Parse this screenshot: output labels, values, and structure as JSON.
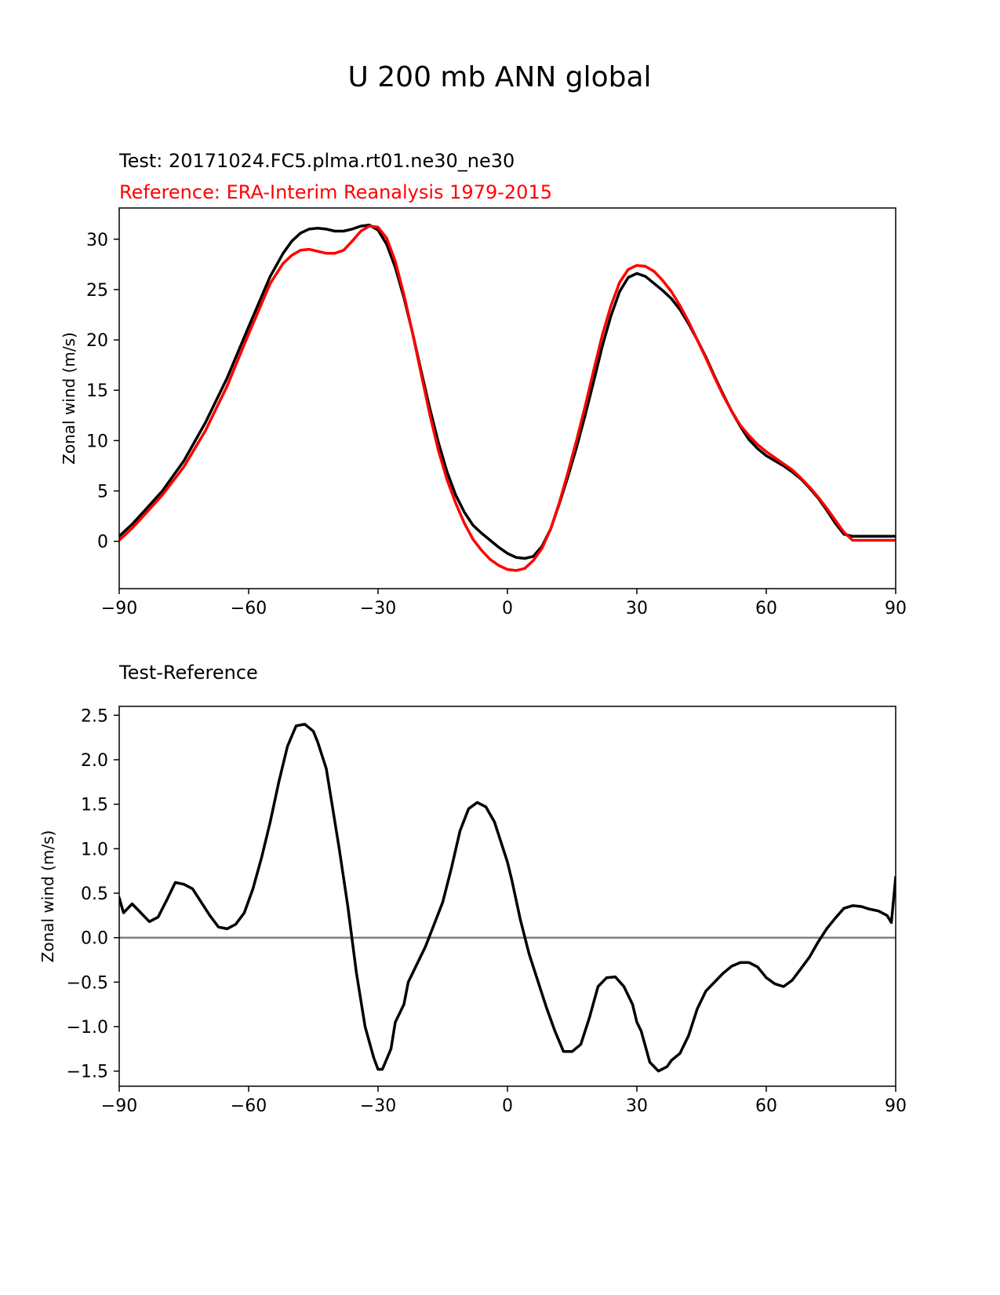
{
  "figure": {
    "title": "U 200 mb ANN global"
  },
  "colors": {
    "test": "#000000",
    "reference": "#ff0000",
    "zero_line": "#808080",
    "axes": "#000000"
  },
  "chart_data": [
    {
      "type": "line",
      "title_test": "Test: 20171024.FC5.plma.rt01.ne30_ne30",
      "title_reference": "Reference: ERA-Interim Reanalysis 1979-2015",
      "xlabel": "",
      "ylabel": "Zonal wind (m/s)",
      "xlim": [
        -90,
        90
      ],
      "ylim": [
        -4.7,
        33.1
      ],
      "xticks": [
        -90,
        -60,
        -30,
        0,
        30,
        60,
        90
      ],
      "xtick_labels": [
        "−90",
        "−60",
        "−30",
        "0",
        "30",
        "60",
        "90"
      ],
      "yticks": [
        0,
        5,
        10,
        15,
        20,
        25,
        30
      ],
      "ytick_labels": [
        "0",
        "5",
        "10",
        "15",
        "20",
        "25",
        "30"
      ],
      "series": [
        {
          "name": "Test",
          "color": "#000000",
          "x": [
            -90,
            -87,
            -84,
            -80,
            -75,
            -70,
            -65,
            -60,
            -55,
            -52,
            -50,
            -48,
            -46,
            -44,
            -42,
            -40,
            -38,
            -36,
            -34,
            -32,
            -30,
            -28,
            -26,
            -24,
            -22,
            -20,
            -18,
            -16,
            -14,
            -12,
            -10,
            -8,
            -6,
            -4,
            -2,
            0,
            2,
            4,
            6,
            8,
            10,
            12,
            14,
            16,
            18,
            20,
            22,
            24,
            26,
            28,
            30,
            32,
            34,
            36,
            38,
            40,
            42,
            44,
            46,
            48,
            50,
            52,
            54,
            56,
            58,
            60,
            62,
            64,
            66,
            68,
            70,
            72,
            74,
            76,
            78,
            80,
            82,
            84,
            86,
            88,
            90
          ],
          "y": [
            0.5,
            1.7,
            3.1,
            5.0,
            8.0,
            11.8,
            16.2,
            21.3,
            26.3,
            28.6,
            29.8,
            30.6,
            31.0,
            31.1,
            31.0,
            30.8,
            30.8,
            31.0,
            31.3,
            31.4,
            30.9,
            29.5,
            27.2,
            24.2,
            20.7,
            16.9,
            13.2,
            9.8,
            6.9,
            4.6,
            2.9,
            1.6,
            0.8,
            0.1,
            -0.6,
            -1.2,
            -1.6,
            -1.7,
            -1.5,
            -0.5,
            1.2,
            3.7,
            6.4,
            9.3,
            12.5,
            15.9,
            19.4,
            22.4,
            24.8,
            26.2,
            26.6,
            26.3,
            25.6,
            24.9,
            24.1,
            23.0,
            21.6,
            20.0,
            18.3,
            16.4,
            14.6,
            12.9,
            11.4,
            10.1,
            9.2,
            8.5,
            8.0,
            7.5,
            6.9,
            6.2,
            5.3,
            4.3,
            3.1,
            1.8,
            0.7,
            0.5,
            0.5,
            0.5,
            0.5,
            0.5,
            0.5
          ]
        },
        {
          "name": "Reference",
          "color": "#ff0000",
          "x": [
            -90,
            -87,
            -84,
            -80,
            -75,
            -70,
            -65,
            -60,
            -55,
            -52,
            -50,
            -48,
            -46,
            -44,
            -42,
            -40,
            -38,
            -36,
            -34,
            -32,
            -30,
            -28,
            -26,
            -24,
            -22,
            -20,
            -18,
            -16,
            -14,
            -12,
            -10,
            -8,
            -6,
            -4,
            -2,
            0,
            2,
            4,
            6,
            8,
            10,
            12,
            14,
            16,
            18,
            20,
            22,
            24,
            26,
            28,
            30,
            32,
            34,
            36,
            38,
            40,
            42,
            44,
            46,
            48,
            50,
            52,
            54,
            56,
            58,
            60,
            62,
            64,
            66,
            68,
            70,
            72,
            74,
            76,
            78,
            80,
            82,
            84,
            86,
            88,
            90
          ],
          "y": [
            0.1,
            1.3,
            2.7,
            4.6,
            7.4,
            11.0,
            15.4,
            20.6,
            25.6,
            27.6,
            28.4,
            28.9,
            29.0,
            28.8,
            28.6,
            28.6,
            28.9,
            29.8,
            30.8,
            31.3,
            31.2,
            30.1,
            27.8,
            24.5,
            20.7,
            16.6,
            12.6,
            9.0,
            6.1,
            3.8,
            1.8,
            0.2,
            -0.9,
            -1.8,
            -2.4,
            -2.8,
            -2.9,
            -2.7,
            -1.9,
            -0.7,
            1.2,
            3.8,
            6.8,
            10.0,
            13.4,
            17.0,
            20.5,
            23.4,
            25.7,
            27.0,
            27.4,
            27.3,
            26.8,
            25.9,
            24.8,
            23.4,
            21.8,
            20.0,
            18.2,
            16.3,
            14.5,
            12.9,
            11.5,
            10.5,
            9.6,
            8.9,
            8.3,
            7.7,
            7.1,
            6.3,
            5.4,
            4.4,
            3.3,
            2.1,
            0.9,
            0.1,
            0.1,
            0.1,
            0.1,
            0.1,
            0.1
          ]
        }
      ]
    },
    {
      "type": "line",
      "title": "Test-Reference",
      "xlabel": "",
      "ylabel": "Zonal wind (m/s)",
      "xlim": [
        -90,
        90
      ],
      "ylim": [
        -1.67,
        2.6
      ],
      "xticks": [
        -90,
        -60,
        -30,
        0,
        30,
        60,
        90
      ],
      "xtick_labels": [
        "−90",
        "−60",
        "−30",
        "0",
        "30",
        "60",
        "90"
      ],
      "yticks": [
        -1.5,
        -1.0,
        -0.5,
        0.0,
        0.5,
        1.0,
        1.5,
        2.0,
        2.5
      ],
      "ytick_labels": [
        "−1.5",
        "−1.0",
        "−0.5",
        "0.0",
        "0.5",
        "1.0",
        "1.5",
        "2.0",
        "2.5"
      ],
      "zero_line": 0.0,
      "series": [
        {
          "name": "Test-Reference",
          "color": "#000000",
          "x": [
            -90,
            -89,
            -87,
            -85,
            -83,
            -81,
            -79,
            -77,
            -75,
            -73,
            -71,
            -69,
            -67,
            -65,
            -63,
            -61,
            -59,
            -57,
            -55,
            -53,
            -51,
            -49,
            -47,
            -45,
            -44,
            -42,
            -41,
            -39,
            -37,
            -35,
            -33,
            -31,
            -30,
            -29,
            -27,
            -26,
            -24,
            -23,
            -21,
            -19,
            -17,
            -15,
            -13,
            -11,
            -9,
            -7,
            -5,
            -3,
            -1,
            0,
            1,
            3,
            5,
            7,
            9,
            11,
            13,
            15,
            17,
            19,
            21,
            23,
            25,
            27,
            29,
            30,
            31,
            33,
            35,
            37,
            38,
            40,
            42,
            44,
            46,
            48,
            50,
            52,
            54,
            56,
            58,
            60,
            62,
            64,
            66,
            68,
            70,
            72,
            74,
            76,
            78,
            80,
            82,
            84,
            86,
            88,
            89,
            90
          ],
          "y": [
            0.45,
            0.28,
            0.38,
            0.28,
            0.18,
            0.23,
            0.42,
            0.62,
            0.6,
            0.55,
            0.4,
            0.25,
            0.12,
            0.1,
            0.15,
            0.28,
            0.55,
            0.9,
            1.3,
            1.75,
            2.15,
            2.38,
            2.4,
            2.32,
            2.2,
            1.9,
            1.6,
            1.0,
            0.35,
            -0.4,
            -1.0,
            -1.35,
            -1.48,
            -1.48,
            -1.25,
            -0.95,
            -0.75,
            -0.5,
            -0.3,
            -0.1,
            0.15,
            0.4,
            0.78,
            1.2,
            1.45,
            1.52,
            1.47,
            1.3,
            1.0,
            0.85,
            0.65,
            0.2,
            -0.18,
            -0.48,
            -0.78,
            -1.05,
            -1.28,
            -1.28,
            -1.2,
            -0.9,
            -0.55,
            -0.45,
            -0.44,
            -0.55,
            -0.75,
            -0.95,
            -1.05,
            -1.4,
            -1.5,
            -1.45,
            -1.38,
            -1.3,
            -1.1,
            -0.8,
            -0.6,
            -0.5,
            -0.4,
            -0.32,
            -0.28,
            -0.28,
            -0.33,
            -0.45,
            -0.52,
            -0.55,
            -0.48,
            -0.35,
            -0.22,
            -0.05,
            0.1,
            0.22,
            0.33,
            0.36,
            0.35,
            0.32,
            0.3,
            0.25,
            0.17,
            0.68
          ]
        }
      ]
    }
  ]
}
